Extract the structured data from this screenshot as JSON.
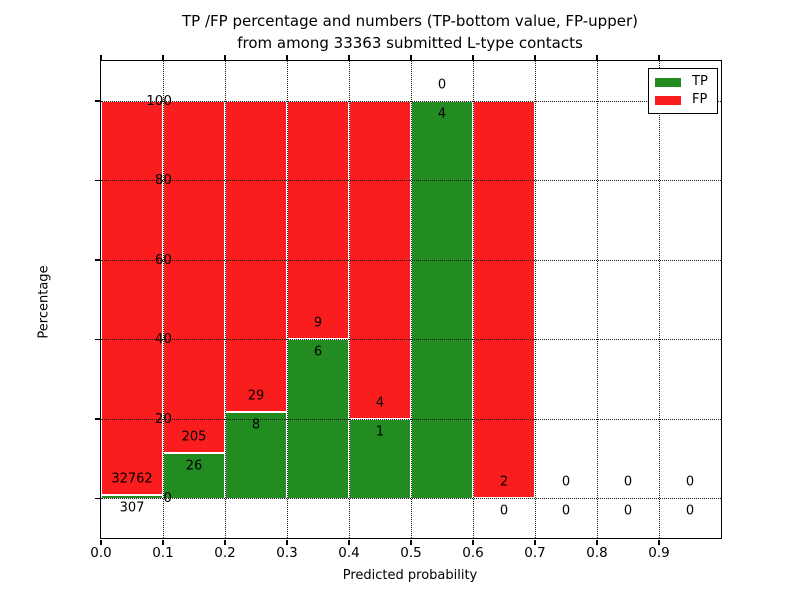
{
  "figure": {
    "title_line1": "TP /FP percentage and numbers (TP-bottom value, FP-upper)",
    "title_line2": "from among 33363 submitted L-type contacts"
  },
  "axes": {
    "xlabel": "Predicted probability",
    "ylabel": "Percentage",
    "ytick_labels": [
      "0",
      "20",
      "40",
      "60",
      "80",
      "100"
    ],
    "yticks": [
      0,
      20,
      40,
      60,
      80,
      100
    ],
    "xtick_labels": [
      "0.0",
      "0.1",
      "0.2",
      "0.3",
      "0.4",
      "0.5",
      "0.6",
      "0.7",
      "0.8",
      "0.9"
    ],
    "xticks": [
      0.0,
      0.1,
      0.2,
      0.3,
      0.4,
      0.5,
      0.6,
      0.7,
      0.8,
      0.9
    ]
  },
  "legend": {
    "items": [
      {
        "label": "TP",
        "color": "#228b22"
      },
      {
        "label": "FP",
        "color": "#fa1d1d"
      }
    ]
  },
  "colors": {
    "tp_green": "#228b22",
    "fp_red": "#fa1d1d",
    "grid": "#1a1a1a",
    "background": "#ffffff",
    "text": "#000000"
  },
  "chart_data": {
    "type": "bar",
    "stacked": true,
    "title": "TP /FP percentage and numbers (TP-bottom value, FP-upper)\nfrom among 33363 submitted L-type contacts",
    "xlabel": "Predicted probability",
    "ylabel": "Percentage",
    "xlim": [
      0.0,
      1.0
    ],
    "ylim": [
      -10,
      110
    ],
    "grid": true,
    "grid_style": "dotted",
    "legend_position": "upper right",
    "total_contacts": 33363,
    "bin_width": 0.1,
    "categories": [
      "0.0-0.1",
      "0.1-0.2",
      "0.2-0.3",
      "0.3-0.4",
      "0.4-0.5",
      "0.5-0.6",
      "0.6-0.7",
      "0.7-0.8",
      "0.8-0.9",
      "0.9-1.0"
    ],
    "series": [
      {
        "name": "TP",
        "color": "#228b22",
        "counts": [
          307,
          26,
          8,
          6,
          1,
          4,
          0,
          0,
          0,
          0
        ],
        "pct": [
          0.93,
          11.26,
          21.62,
          40.0,
          20.0,
          100.0,
          0.0,
          null,
          null,
          null
        ]
      },
      {
        "name": "FP",
        "color": "#fa1d1d",
        "counts": [
          32762,
          205,
          29,
          9,
          4,
          0,
          2,
          0,
          0,
          0
        ],
        "pct": [
          99.07,
          88.74,
          78.38,
          60.0,
          80.0,
          0.0,
          100.0,
          null,
          null,
          null
        ]
      }
    ],
    "label_convention": "TP count below bar top (bottom value), FP count above bar top (upper value)"
  }
}
